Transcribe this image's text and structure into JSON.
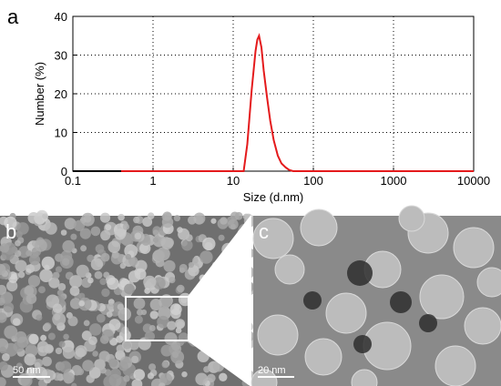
{
  "panels": {
    "a": {
      "letter": "a"
    },
    "b": {
      "letter": "b",
      "scale_bar_label": "50 nm"
    },
    "c": {
      "letter": "c",
      "scale_bar_label": "20 nm"
    }
  },
  "colors": {
    "curve": "#e41a1c",
    "baseline": "#000000",
    "tem_background": "#6e6e6e",
    "particle": "#bdbdbd",
    "highlight_box": "#ffffff"
  },
  "chart_data": {
    "type": "line",
    "xlabel": "Size (d.nm)",
    "ylabel": "Number (%)",
    "x_scale": "log",
    "xlim": [
      0.1,
      10000
    ],
    "ylim": [
      0,
      40
    ],
    "x_ticks": [
      0.1,
      1,
      10,
      100,
      1000,
      10000
    ],
    "x_tick_labels": [
      "0.1",
      "1",
      "10",
      "100",
      "1000",
      "10000"
    ],
    "y_ticks": [
      0,
      10,
      20,
      30,
      40
    ],
    "y_tick_labels": [
      "0",
      "10",
      "20",
      "30",
      "40"
    ],
    "grid": "dotted",
    "series": [
      {
        "x": [
          0.4,
          1,
          5,
          10,
          13.5,
          15,
          17,
          19,
          20,
          21,
          22.5,
          24,
          26.5,
          29,
          32,
          36,
          40,
          45,
          50,
          56,
          60,
          100,
          1000,
          10000
        ],
        "values": [
          0,
          0,
          0,
          0,
          0,
          7,
          21,
          31,
          34,
          35,
          32,
          26,
          19,
          13,
          8,
          4,
          2,
          1,
          0.3,
          0,
          0,
          0,
          0,
          0
        ]
      }
    ]
  }
}
